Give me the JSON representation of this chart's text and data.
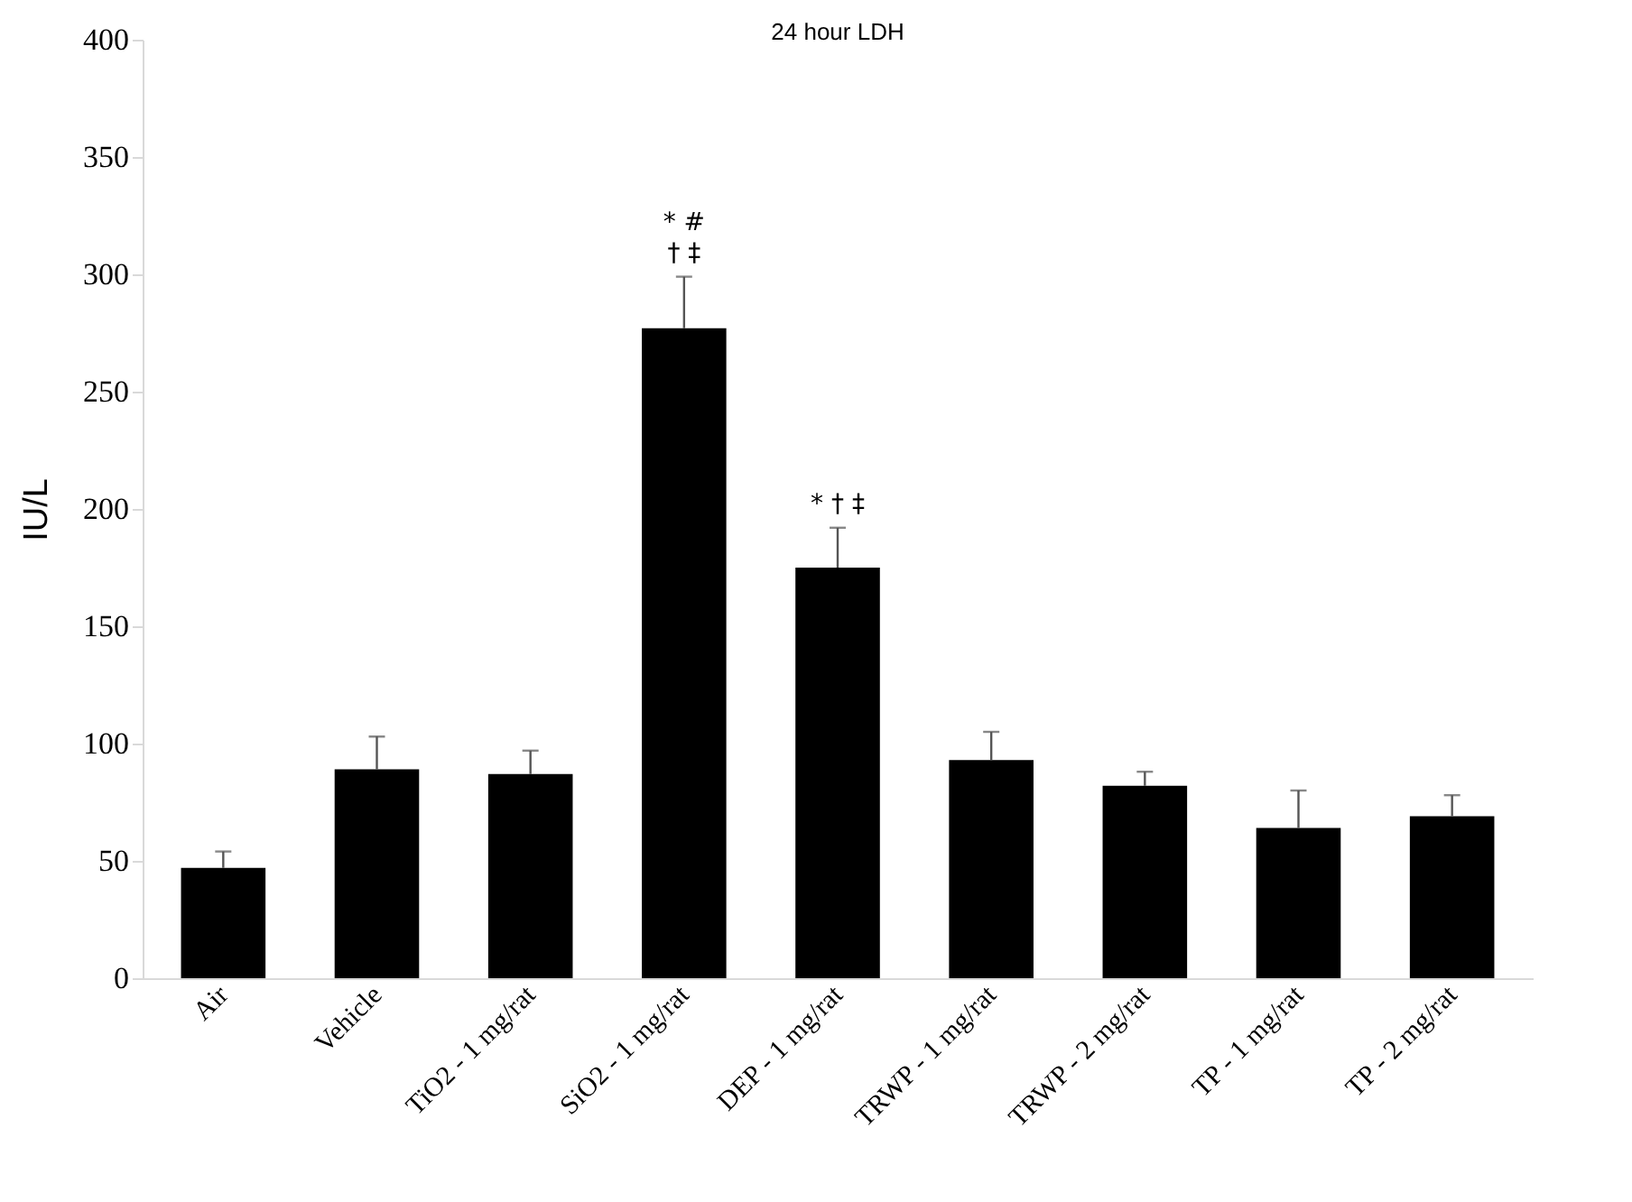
{
  "chart_data": {
    "type": "bar",
    "title": "24 hour LDH",
    "ylabel": "IU/L",
    "categories": [
      "Air",
      "Vehicle",
      "TiO2 - 1 mg/rat",
      "SiO2 - 1 mg/rat",
      "DEP - 1 mg/rat",
      "TRWP - 1 mg/rat",
      "TRWP - 2 mg/rat",
      "TP - 1 mg/rat",
      "TP - 2 mg/rat"
    ],
    "values": [
      47,
      89,
      87,
      277,
      175,
      93,
      82,
      64,
      69
    ],
    "errors": [
      [
        47,
        54
      ],
      [
        89,
        103
      ],
      [
        87,
        97
      ],
      [
        277,
        299
      ],
      [
        175,
        192
      ],
      [
        93,
        105
      ],
      [
        82,
        88
      ],
      [
        64,
        80
      ],
      [
        69,
        78
      ]
    ],
    "color": "#000000",
    "ylim": [
      0,
      400
    ],
    "yticks": [
      0,
      50,
      100,
      150,
      200,
      250,
      300,
      350,
      400
    ],
    "grid": false,
    "annotations": [
      {
        "text": "* #",
        "x": "SiO2 - 1 mg/rat",
        "y": 299
      },
      {
        "text": "† ‡",
        "x": "SiO2 - 1 mg/rat",
        "y": 299
      },
      {
        "text": "* † ‡",
        "x": "DEP - 1 mg/rat",
        "y": 192
      }
    ]
  }
}
